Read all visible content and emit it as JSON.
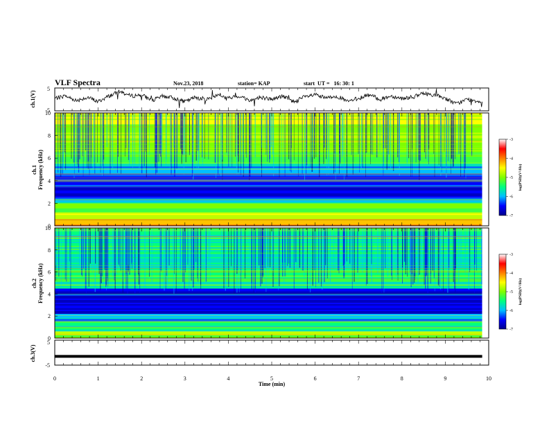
{
  "header": {
    "title": "VLF Spectra",
    "date": "Nov.23, 2018",
    "station": "station= KAP",
    "start_ut": "start  UT =   16: 30: 1"
  },
  "chart_data": [
    {
      "type": "line",
      "panel": "ch1-waveform",
      "ylabel": "ch.1(V)",
      "ylim": [
        -5,
        5
      ],
      "ytick_labels": [
        "5",
        "-5"
      ],
      "xlim": [
        0,
        10
      ],
      "x_extent": 9.85,
      "series": [
        {
          "x": [
            0,
            0.25,
            0.5,
            0.75,
            1.0,
            1.25,
            1.5,
            1.75,
            2.0,
            2.25,
            2.5,
            2.75,
            3.0,
            3.25,
            3.5,
            3.75,
            4.0,
            4.25,
            4.5,
            4.75,
            5.0,
            5.25,
            5.5,
            5.75,
            6.0,
            6.25,
            6.5,
            6.75,
            7.0,
            7.25,
            7.5,
            7.75,
            8.0,
            8.25,
            8.5,
            8.75,
            9.0,
            9.25,
            9.5,
            9.85
          ],
          "y": [
            0.5,
            1.5,
            -0.5,
            1.0,
            -1.0,
            1.5,
            3.5,
            1.5,
            2.0,
            -0.5,
            1.5,
            0.5,
            -1.0,
            1.0,
            0.0,
            2.0,
            0.5,
            1.5,
            -0.5,
            1.0,
            0.0,
            1.5,
            -1.0,
            1.0,
            2.0,
            0.5,
            1.5,
            -1.0,
            0.5,
            2.0,
            0.0,
            1.5,
            0.5,
            1.0,
            2.5,
            2.0,
            0.5,
            -2.0,
            0.0,
            -1.0
          ]
        }
      ]
    },
    {
      "type": "heatmap",
      "panel": "ch1-spectrogram",
      "ylabel": "ch.1\nFrequency (kHz)",
      "ylabel_line1": "ch.1",
      "ylabel_line2": "Frequency (kHz)",
      "ylim": [
        0,
        10
      ],
      "yticks": [
        0,
        2,
        4,
        6,
        8,
        10
      ],
      "xlim": [
        0,
        10
      ],
      "x_extent": 9.85,
      "bands": [
        {
          "from": 0.0,
          "to": 0.6,
          "level": -4.0
        },
        {
          "from": 0.6,
          "to": 1.2,
          "level": -4.5
        },
        {
          "from": 1.2,
          "to": 2.0,
          "level": -5.0
        },
        {
          "from": 2.0,
          "to": 2.5,
          "level": -5.6
        },
        {
          "from": 2.5,
          "to": 3.5,
          "level": -6.5
        },
        {
          "from": 3.5,
          "to": 4.5,
          "level": -6.2
        },
        {
          "from": 4.5,
          "to": 5.5,
          "level": -5.6
        },
        {
          "from": 5.5,
          "to": 7.0,
          "level": -5.0
        },
        {
          "from": 7.0,
          "to": 9.0,
          "level": -4.6
        },
        {
          "from": 9.0,
          "to": 10.0,
          "level": -4.3
        }
      ],
      "colorbar": {
        "label": "log(PSD)(V²/Hz)",
        "range": [
          -7,
          -3
        ],
        "ticks": [
          "-3",
          "-4",
          "-5",
          "-6",
          "-7"
        ]
      }
    },
    {
      "type": "heatmap",
      "panel": "ch2-spectrogram",
      "ylabel": "ch.2\nFrequency (kHz)",
      "ylabel_line1": "ch.2",
      "ylabel_line2": "Frequency (kHz)",
      "ylim": [
        0,
        10
      ],
      "yticks": [
        0,
        2,
        4,
        6,
        8,
        10
      ],
      "xlim": [
        0,
        10
      ],
      "x_extent": 9.85,
      "bands": [
        {
          "from": 0.0,
          "to": 0.6,
          "level": -4.8
        },
        {
          "from": 0.6,
          "to": 1.5,
          "level": -5.4
        },
        {
          "from": 1.5,
          "to": 2.2,
          "level": -5.8
        },
        {
          "from": 2.2,
          "to": 3.2,
          "level": -6.5
        },
        {
          "from": 3.2,
          "to": 4.5,
          "level": -6.3
        },
        {
          "from": 4.5,
          "to": 6.2,
          "level": -5.1
        },
        {
          "from": 6.2,
          "to": 8.0,
          "level": -5.5
        },
        {
          "from": 8.0,
          "to": 10.0,
          "level": -5.2
        }
      ],
      "colorbar": {
        "label": "log(PSD)(V²/Hz)",
        "range": [
          -7,
          -3
        ],
        "ticks": [
          "-3",
          "-4",
          "-5",
          "-6",
          "-7"
        ]
      }
    },
    {
      "type": "line",
      "panel": "ch3-waveform",
      "ylabel": "ch.3(V)",
      "ylim": [
        -5,
        5
      ],
      "ytick_labels": [
        "5",
        "-5"
      ],
      "xlim": [
        0,
        10
      ],
      "x_extent": 9.85,
      "series": [
        {
          "x": [
            0,
            9.85
          ],
          "y": [
            -1.5,
            -1.5
          ]
        }
      ]
    }
  ],
  "xaxis": {
    "label": "Time (min)",
    "ticks": [
      "0",
      "1",
      "2",
      "3",
      "4",
      "5",
      "6",
      "7",
      "8",
      "9",
      "10"
    ]
  },
  "colors": {
    "axis": "#000000",
    "trace": "#000000",
    "colormap": [
      "#00008b",
      "#0000ff",
      "#00bfff",
      "#00ff7f",
      "#7fff00",
      "#ffff00",
      "#ff7f00",
      "#ff0000",
      "#ffffff"
    ]
  }
}
